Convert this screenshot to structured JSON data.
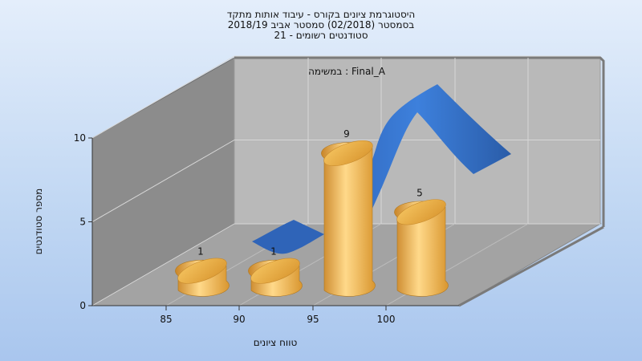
{
  "chart_data": {
    "type": "bar",
    "title_lines": [
      "היסטוגרמת ציונים בקורס - עיבוד אותות מתקד",
      "בסמסטר  (02/2018)  סמסטר אביב 2018/19",
      "סטודנטים רשומים - 21"
    ],
    "xlabel": "טווח ציונים",
    "ylabel": "מספר סטודנטים",
    "categories": [
      "85",
      "90",
      "95",
      "100"
    ],
    "x_ticks": [
      "85",
      "90",
      "95",
      "100"
    ],
    "y_ticks": [
      "0",
      "5",
      "10"
    ],
    "ylim": [
      0,
      10
    ],
    "grid": true,
    "series": [
      {
        "name": "במשימה : Final_A",
        "values": [
          1,
          1,
          9,
          5
        ]
      }
    ],
    "data_labels": [
      "1",
      "1",
      "9",
      "5"
    ],
    "colors": {
      "bar": "#e8a640",
      "bar_highlight": "#ffd98a",
      "ribbon": "#3a78d0",
      "wall": "#b9b9b9",
      "side_wall": "#8c8c8c",
      "floor": "#a3a3a3"
    }
  }
}
